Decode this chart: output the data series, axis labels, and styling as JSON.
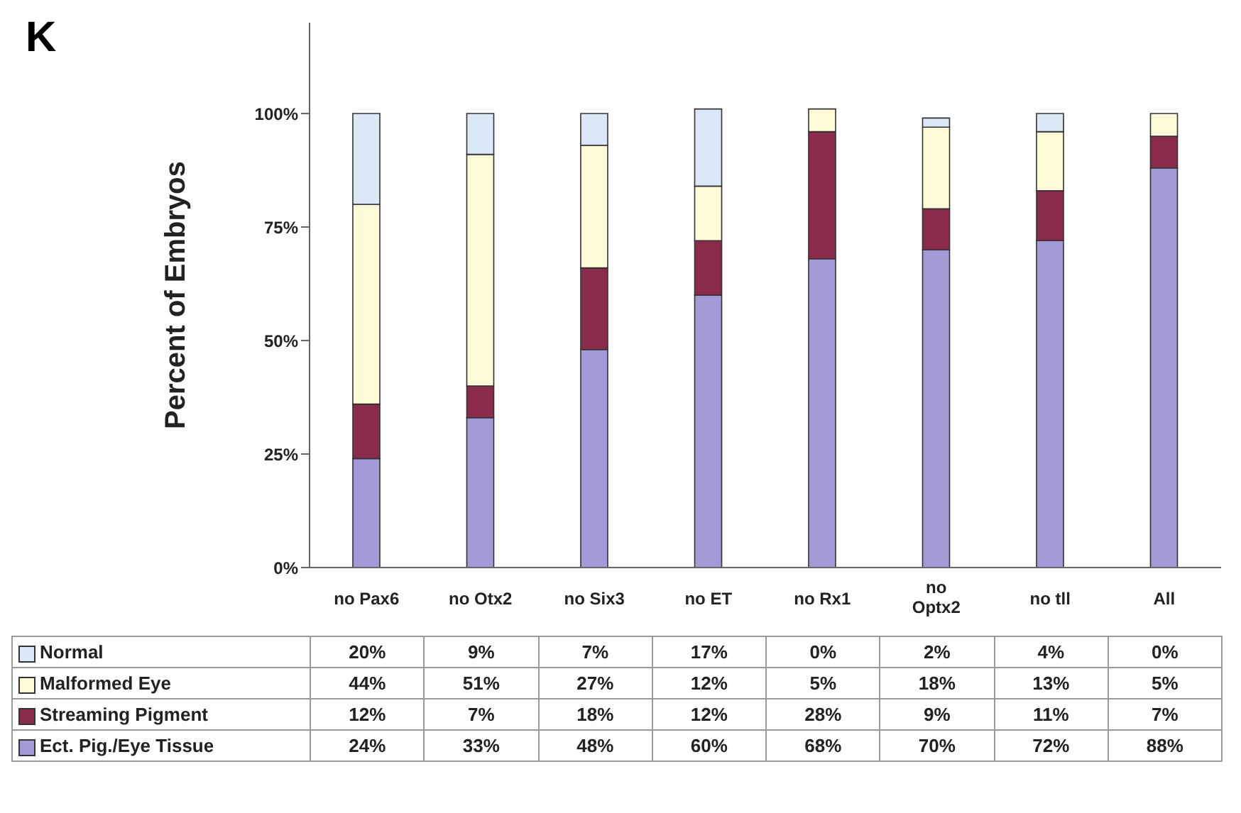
{
  "chart_data": {
    "type": "bar",
    "title": "K",
    "ylabel": "Percent of Embryos",
    "stacked": true,
    "legend": "bottom",
    "categories": [
      "no Pax6",
      "no Otx2",
      "no Six3",
      "no ET",
      "no Rx1",
      "no Optx2",
      "no tll",
      "All"
    ],
    "series": [
      {
        "name": "Ect. Pig./Eye Tissue",
        "color": "#a29bd8",
        "values": [
          24,
          33,
          48,
          60,
          68,
          70,
          72,
          88
        ],
        "value_labels": [
          "24%",
          "33%",
          "48%",
          "60%",
          "68%",
          "70%",
          "72%",
          "88%"
        ]
      },
      {
        "name": "Streaming Pigment",
        "color": "#8a2b4c",
        "values": [
          12,
          7,
          18,
          12,
          28,
          9,
          11,
          7
        ],
        "value_labels": [
          "12%",
          "7%",
          "18%",
          "12%",
          "28%",
          "9%",
          "11%",
          "7%"
        ]
      },
      {
        "name": "Malformed Eye",
        "color": "#fffbd8",
        "values": [
          44,
          51,
          27,
          12,
          5,
          18,
          13,
          5
        ],
        "value_labels": [
          "44%",
          "51%",
          "27%",
          "12%",
          "5%",
          "18%",
          "13%",
          "5%"
        ]
      },
      {
        "name": "Normal",
        "color": "#dbe8f8",
        "values": [
          20,
          9,
          7,
          17,
          0,
          2,
          4,
          0
        ],
        "value_labels": [
          "20%",
          "9%",
          "7%",
          "17%",
          "0%",
          "2%",
          "4%",
          "0%"
        ]
      }
    ],
    "ylim": [
      0,
      120
    ],
    "yticks": [
      {
        "value": 0,
        "label": "0%"
      },
      {
        "value": 25,
        "label": "25%"
      },
      {
        "value": 50,
        "label": "50%"
      },
      {
        "value": 75,
        "label": "75%"
      },
      {
        "value": 100,
        "label": "100%"
      }
    ]
  }
}
